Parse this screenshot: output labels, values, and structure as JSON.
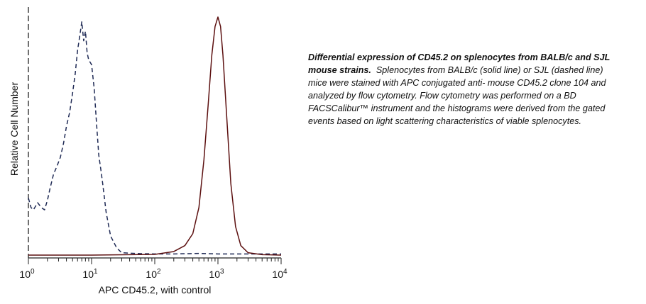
{
  "chart_data": {
    "type": "line",
    "xlabel": "APC CD45.2, with control",
    "ylabel": "Relative Cell Number",
    "x_scale": "log",
    "xlim": [
      1,
      10000
    ],
    "ylim": [
      0,
      100
    ],
    "x_ticks": [
      {
        "base": "10",
        "exp": "0"
      },
      {
        "base": "10",
        "exp": "1"
      },
      {
        "base": "10",
        "exp": "2"
      },
      {
        "base": "10",
        "exp": "3"
      },
      {
        "base": "10",
        "exp": "4"
      }
    ],
    "grid": false,
    "legend": "none",
    "series": [
      {
        "style": "dashed",
        "color": "#1f2a55",
        "x": [
          1,
          1.1,
          1.2,
          1.4,
          1.6,
          1.8,
          2,
          2.2,
          2.5,
          2.8,
          3.2,
          3.6,
          4,
          4.5,
          5,
          5.5,
          6,
          6.5,
          7,
          7.5,
          8,
          8.5,
          9,
          10,
          11,
          12,
          13,
          14,
          15,
          17,
          20,
          25,
          30,
          40,
          60,
          100,
          200,
          500,
          1000,
          3000,
          10000
        ],
        "y": [
          24,
          20,
          19,
          22,
          20,
          19,
          23,
          28,
          34,
          37,
          41,
          47,
          54,
          60,
          68,
          76,
          86,
          92,
          98,
          90,
          94,
          85,
          82,
          80,
          70,
          55,
          42,
          36,
          30,
          18,
          8,
          3,
          1,
          0.8,
          0.6,
          0.5,
          0.5,
          0.7,
          0.5,
          0.5,
          0.5
        ]
      },
      {
        "style": "solid",
        "color": "#5c1010",
        "x": [
          1,
          10,
          100,
          200,
          300,
          400,
          500,
          600,
          700,
          800,
          900,
          1000,
          1100,
          1200,
          1400,
          1600,
          1900,
          2300,
          3000,
          5000,
          10000
        ],
        "y": [
          0,
          0,
          0.3,
          1.5,
          4,
          9,
          20,
          40,
          63,
          84,
          96,
          100,
          96,
          84,
          55,
          30,
          12,
          4,
          1,
          0.2,
          0
        ]
      }
    ]
  },
  "caption": {
    "title": "Differential expression of CD45.2 on splenocytes from BALB/c and SJL mouse strains.",
    "body": "Splenocytes from BALB/c (solid line) or SJL (dashed line) mice were stained with APC conjugated anti- mouse CD45.2 clone 104 and analyzed by flow cytometry. Flow cytometry was performed on a BD FACSCalibur™ instrument and the histograms were derived from the gated events based on light scattering characteristics of viable splenocytes."
  }
}
